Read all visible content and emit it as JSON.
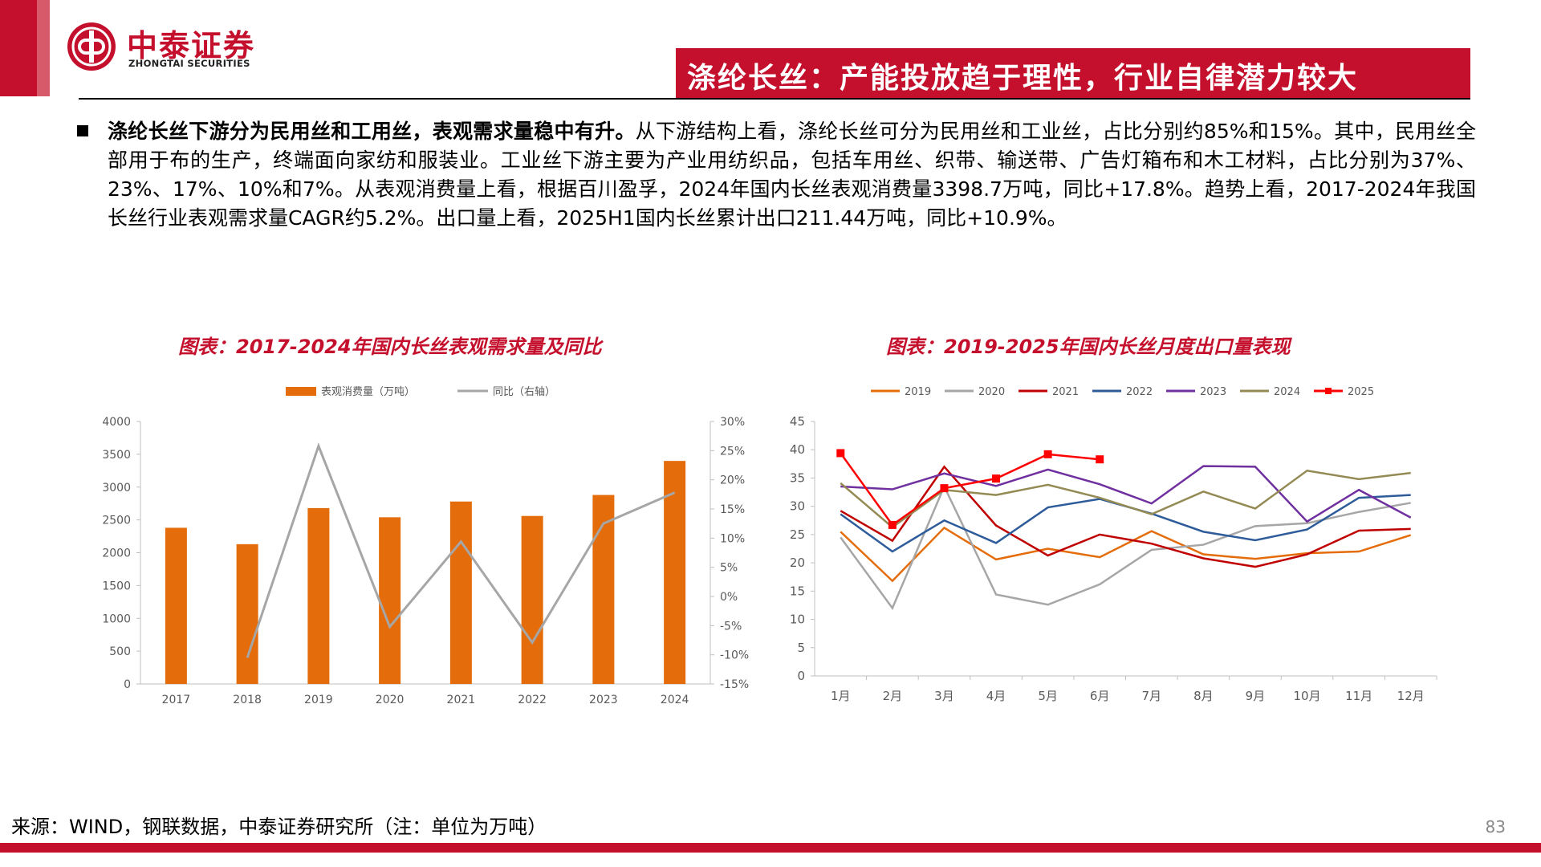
{
  "header": {
    "logo_cn": "中泰证券",
    "logo_en": "ZHONGTAI SECURITIES",
    "title": "涤纶长丝：产能投放趋于理性，行业自律潜力较大"
  },
  "body": {
    "bold_lead": "涤纶长丝下游分为民用丝和工用丝，表观需求量稳中有升。",
    "text": "从下游结构上看，涤纶长丝可分为民用丝和工业丝，占比分别约85%和15%。其中，民用丝全部用于布的生产，终端面向家纺和服装业。工业丝下游主要为产业用纺织品，包括车用丝、织带、输送带、广告灯箱布和木工材料，占比分别为37%、23%、17%、10%和7%。从表观消费量上看，根据百川盈孚，2024年国内长丝表观消费量3398.7万吨，同比+17.8%。趋势上看，2017-2024年我国长丝行业表观需求量CAGR约5.2%。出口量上看，2025H1国内长丝累计出口211.44万吨，同比+10.9%。"
  },
  "footer": {
    "source": "来源：WIND，钢联数据，中泰证券研究所（注：单位为万吨）",
    "page": "83"
  },
  "chart_data": [
    {
      "type": "bar",
      "title": "图表：2017-2024年国内长丝表观需求量及同比",
      "categories": [
        "2017",
        "2018",
        "2019",
        "2020",
        "2021",
        "2022",
        "2023",
        "2024"
      ],
      "series": [
        {
          "name": "表观消费量（万吨）",
          "type": "bar",
          "axis": "left",
          "color": "#E46C0A",
          "values": [
            2380,
            2130,
            2680,
            2540,
            2780,
            2560,
            2880,
            3398.7
          ]
        },
        {
          "name": "同比（右轴）",
          "type": "line",
          "axis": "right",
          "color": "#A6A6A6",
          "values": [
            null,
            -10.5,
            25.8,
            -5.2,
            9.4,
            -7.9,
            12.5,
            17.8
          ]
        }
      ],
      "ylim_left": [
        0,
        4000
      ],
      "yticks_left": [
        "4000",
        "3500",
        "3000",
        "2500",
        "2000",
        "1500",
        "1000",
        "500",
        "0"
      ],
      "ylim_right": [
        -15,
        30
      ],
      "yticks_right": [
        "30%",
        "25%",
        "20%",
        "15%",
        "10%",
        "5%",
        "0%",
        "-5%",
        "-10%",
        "-15%"
      ],
      "legend_position": "top-center",
      "grid": false
    },
    {
      "type": "line",
      "title": "图表：2019-2025年国内长丝月度出口量表现",
      "categories": [
        "1月",
        "2月",
        "3月",
        "4月",
        "5月",
        "6月",
        "7月",
        "8月",
        "9月",
        "10月",
        "11月",
        "12月"
      ],
      "series": [
        {
          "name": "2019",
          "color": "#E46C0A",
          "values": [
            25.5,
            16.8,
            26.2,
            20.6,
            22.5,
            21.0,
            25.6,
            21.5,
            20.7,
            21.7,
            22.0,
            24.9
          ]
        },
        {
          "name": "2020",
          "color": "#A6A6A6",
          "values": [
            24.5,
            12.0,
            33.5,
            14.4,
            12.6,
            16.2,
            22.3,
            23.2,
            26.5,
            27.0,
            29.0,
            30.6
          ]
        },
        {
          "name": "2021",
          "color": "#C00000",
          "values": [
            29.2,
            23.9,
            37.0,
            26.6,
            21.3,
            25.0,
            23.4,
            20.8,
            19.3,
            21.5,
            25.7,
            26.0
          ]
        },
        {
          "name": "2022",
          "color": "#2E5C9A",
          "values": [
            28.6,
            22.0,
            27.5,
            23.5,
            29.8,
            31.3,
            28.7,
            25.5,
            24.0,
            25.9,
            31.5,
            32.0
          ]
        },
        {
          "name": "2023",
          "color": "#7030A0",
          "values": [
            33.5,
            33.0,
            35.8,
            33.6,
            36.5,
            33.9,
            30.5,
            37.1,
            37.0,
            27.3,
            32.9,
            28.0
          ]
        },
        {
          "name": "2024",
          "color": "#948A54",
          "values": [
            34.1,
            26.3,
            32.9,
            32.0,
            33.8,
            31.5,
            28.6,
            32.6,
            29.6,
            36.3,
            34.8,
            35.9
          ]
        },
        {
          "name": "2025",
          "color": "#FF0000",
          "marker": "square",
          "values": [
            39.4,
            26.7,
            33.2,
            34.9,
            39.2,
            38.3,
            null,
            null,
            null,
            null,
            null,
            null
          ]
        }
      ],
      "ylim": [
        0,
        45
      ],
      "yticks": [
        "45",
        "40",
        "35",
        "30",
        "25",
        "20",
        "15",
        "10",
        "5",
        "0"
      ],
      "legend_position": "top-center",
      "grid": false
    }
  ]
}
